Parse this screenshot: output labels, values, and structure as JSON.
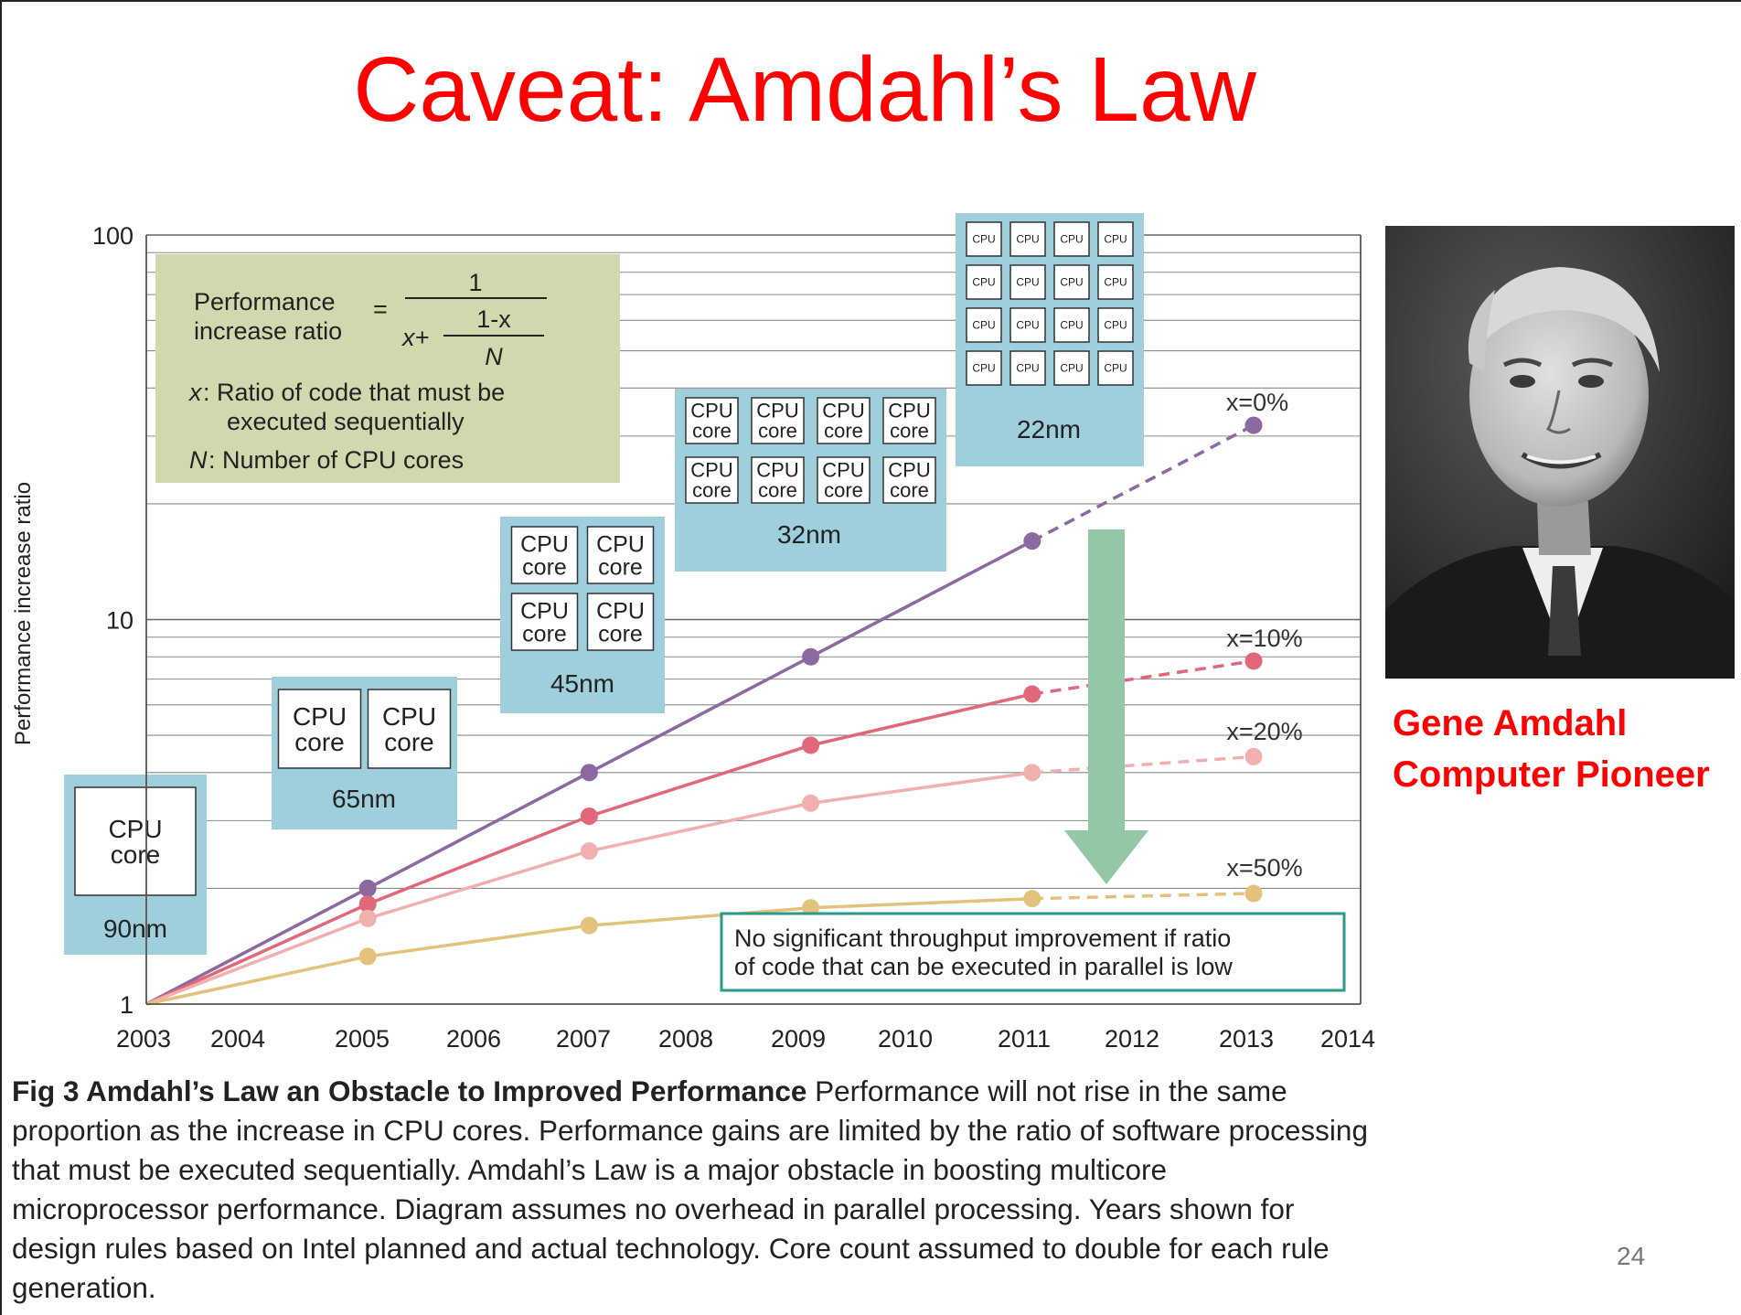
{
  "slide": {
    "title": "Caveat: Amdahl’s Law",
    "page_number": "24",
    "person": {
      "name": "Gene Amdahl",
      "role": "Computer Pioneer"
    }
  },
  "caption": {
    "label": "Fig 3  Amdahl’s Law an Obstacle to Improved Performance",
    "text": "  Performance will not rise in the same proportion as the increase in CPU cores. Performance gains are limited by the ratio of software processing that must be executed sequentially. Amdahl’s Law is a major obstacle in boosting multicore microprocessor performance. Diagram assumes no overhead in parallel processing. Years shown for design rules based on Intel planned and actual technology. Core count assumed to double for each rule generation."
  },
  "formula": {
    "lhs_line1": "Performance",
    "lhs_line2": "increase ratio",
    "equals": "=",
    "numerator": "1",
    "denom_x": "x+",
    "inner_num": "1-x",
    "inner_den": "N",
    "def_x_symbol": "x",
    "def_x_line1": ":  Ratio of code that must be",
    "def_x_line2": "executed sequentially",
    "def_n_symbol": "N",
    "def_n_text": ":  Number of CPU cores"
  },
  "note": {
    "line1": "No significant throughput improvement if ratio",
    "line2": "of code that can be executed in parallel is low"
  },
  "chips": [
    {
      "node": "90nm",
      "year": 2003,
      "cores": 1,
      "core_label": [
        "CPU",
        "core"
      ]
    },
    {
      "node": "65nm",
      "year": 2005,
      "cores": 2,
      "core_label": [
        "CPU",
        "core"
      ]
    },
    {
      "node": "45nm",
      "year": 2007,
      "cores": 4,
      "core_label": [
        "CPU",
        "core"
      ]
    },
    {
      "node": "32nm",
      "year": 2009,
      "cores": 8,
      "core_label": [
        "CPU",
        "core"
      ]
    },
    {
      "node": "22nm",
      "year": 2011,
      "cores": 16,
      "core_label": [
        "CPU"
      ]
    }
  ],
  "colors": {
    "series_x0": "#8a6aa0",
    "series_x10": "#e0687a",
    "series_x20": "#f0b0b0",
    "series_x50": "#e2c27c",
    "chip_bg": "#9fcfdc",
    "formula_bg": "#cfd9ad",
    "arrow": "#93c7a6",
    "note_border": "#2a9a8a",
    "title": "#ff0000"
  },
  "chart_data": {
    "type": "line",
    "title": "",
    "xlabel": "",
    "ylabel": "Performance increase ratio",
    "y_scale": "log",
    "ylim": [
      1,
      100
    ],
    "xlim": [
      2003,
      2014
    ],
    "x_ticks": [
      2003,
      2004,
      2005,
      2006,
      2007,
      2008,
      2009,
      2010,
      2011,
      2012,
      2013,
      2014
    ],
    "y_ticks": [
      1,
      10,
      100
    ],
    "grid": "horizontal",
    "series": [
      {
        "name": "x=0%",
        "points": [
          [
            2003,
            1
          ],
          [
            2005,
            2
          ],
          [
            2007,
            4
          ],
          [
            2009,
            8
          ],
          [
            2011,
            16
          ],
          [
            2013,
            32
          ]
        ]
      },
      {
        "name": "x=10%",
        "points": [
          [
            2003,
            1
          ],
          [
            2005,
            1.82
          ],
          [
            2007,
            3.08
          ],
          [
            2009,
            4.71
          ],
          [
            2011,
            6.4
          ],
          [
            2013,
            7.8
          ]
        ]
      },
      {
        "name": "x=20%",
        "points": [
          [
            2003,
            1
          ],
          [
            2005,
            1.67
          ],
          [
            2007,
            2.5
          ],
          [
            2009,
            3.33
          ],
          [
            2011,
            4.0
          ],
          [
            2013,
            4.4
          ]
        ]
      },
      {
        "name": "x=50%",
        "points": [
          [
            2003,
            1
          ],
          [
            2005,
            1.33
          ],
          [
            2007,
            1.6
          ],
          [
            2009,
            1.78
          ],
          [
            2011,
            1.88
          ],
          [
            2013,
            1.94
          ]
        ]
      }
    ]
  }
}
